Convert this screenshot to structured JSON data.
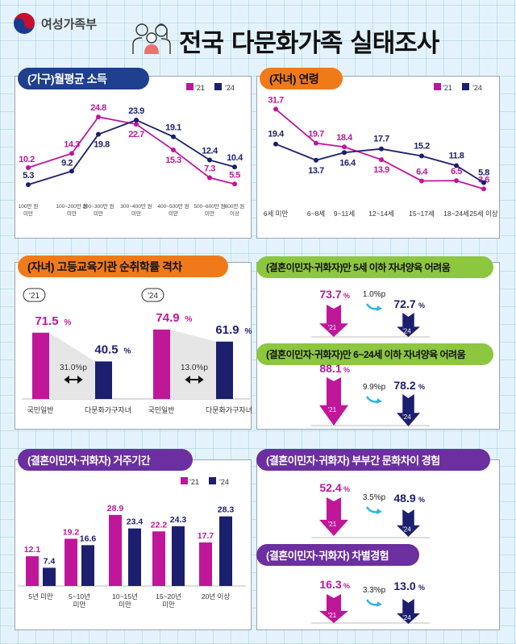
{
  "header": {
    "ministry": "여성가족부",
    "title": "전국 다문화가족 실태조사"
  },
  "colors": {
    "y21": "#c0169a",
    "y24": "#1b1f6e",
    "income_header": "#1f3f8f",
    "orange": "#f07a1a",
    "green": "#8dc63f",
    "purple": "#6b2fa0",
    "cyan": "#29b6e6"
  },
  "legend": {
    "y21": "'21",
    "y24": "'24"
  },
  "chart_data": [
    {
      "type": "line",
      "title": "(가구)월평균 소득",
      "categories": [
        [
          "100만 원",
          "미만"
        ],
        [
          "100~200만 원",
          "미만"
        ],
        [
          "200~300만 원",
          "미만"
        ],
        [
          "300~400만 원",
          "미만"
        ],
        [
          "400~500만 원",
          "미만"
        ],
        [
          "500~600만 원",
          "미만"
        ],
        [
          "600만 원",
          "이상"
        ]
      ],
      "series": [
        {
          "name": "'21",
          "values": [
            10.2,
            14.3,
            24.8,
            22.7,
            15.3,
            7.3,
            5.5
          ]
        },
        {
          "name": "'24",
          "values": [
            5.3,
            9.2,
            19.8,
            23.9,
            19.1,
            12.4,
            10.4
          ]
        }
      ],
      "legend": "top-right",
      "grid": false
    },
    {
      "type": "line",
      "title": "(자녀) 연령",
      "categories": [
        "6세 미만",
        "6~8세",
        "9~11세",
        "12~14세",
        "15~17세",
        "18~24세",
        "25세 이상"
      ],
      "series": [
        {
          "name": "'21",
          "values": [
            31.7,
            19.7,
            18.4,
            13.9,
            6.4,
            6.5,
            3.6
          ]
        },
        {
          "name": "'24",
          "values": [
            19.4,
            13.7,
            16.4,
            17.7,
            15.2,
            11.8,
            5.8
          ]
        }
      ],
      "legend": "top-right",
      "grid": false
    },
    {
      "type": "bar",
      "title": "(자녀) 고등교육기관 순취학률 격차",
      "groups": [
        {
          "year": "'21",
          "categories": [
            "국민일반",
            "다문화가구자녀"
          ],
          "values": [
            71.5,
            40.5
          ],
          "gap": "31.0%p"
        },
        {
          "year": "'24",
          "categories": [
            "국민일반",
            "다문화가구자녀"
          ],
          "values": [
            74.9,
            61.9
          ],
          "gap": "13.0%p"
        }
      ],
      "unit": "%"
    },
    {
      "type": "bar",
      "title": "(결혼이민자·귀화자) 거주기간",
      "categories": [
        [
          "5년 미만"
        ],
        [
          "5~10년",
          "미만"
        ],
        [
          "10~15년",
          "미만"
        ],
        [
          "15~20년",
          "미만"
        ],
        [
          "20년 이상"
        ]
      ],
      "series": [
        {
          "name": "'21",
          "values": [
            12.1,
            19.2,
            28.9,
            22.2,
            17.7
          ]
        },
        {
          "name": "'24",
          "values": [
            7.4,
            16.6,
            23.4,
            24.3,
            28.3
          ]
        }
      ],
      "legend": "top-right"
    }
  ],
  "stats": [
    {
      "title": "(결혼이민자·귀화자)만 5세 이하 자녀양육 어려움",
      "v21": "73.7",
      "v24": "72.7",
      "diff": "1.0%p"
    },
    {
      "title": "(결혼이민자·귀화자)만 6~24세 이하 자녀양육 어려움",
      "v21": "88.1",
      "v24": "78.2",
      "diff": "9.9%p"
    },
    {
      "title": "(결혼이민자·귀화자) 부부간 문화차이 경험",
      "v21": "52.4",
      "v24": "48.9",
      "diff": "3.5%p"
    },
    {
      "title": "(결혼이민자·귀화자) 차별경험",
      "v21": "16.3",
      "v24": "13.0",
      "diff": "3.3%p"
    }
  ],
  "unit": "%"
}
